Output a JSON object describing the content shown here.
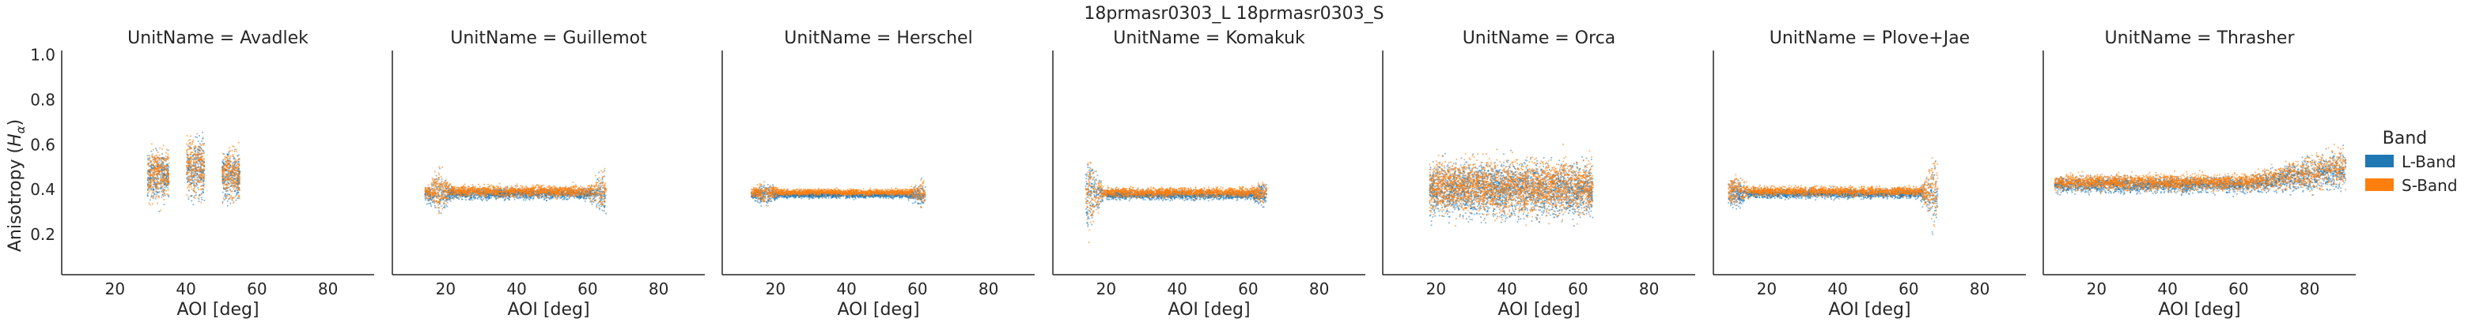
{
  "chart_data": {
    "type": "scatter",
    "title": "18prmasr0303_L 18prmasr0303_S",
    "xlabel": "AOI [deg]",
    "ylabel": "Anisotropy ($H_{\\alpha}$)",
    "ylabel_main": "Anisotropy (",
    "ylabel_math": "H",
    "ylabel_sub": "α",
    "ylabel_close": ")",
    "xlim": [
      5,
      93
    ],
    "ylim": [
      0.02,
      1.02
    ],
    "xticks": [
      "20",
      "40",
      "60",
      "80"
    ],
    "yticks": [
      "0.2",
      "0.4",
      "0.6",
      "0.8",
      "1.0"
    ],
    "legend": {
      "title": "Band",
      "placement": "right",
      "entries": [
        {
          "label": "L-Band",
          "color": "#1f77b4"
        },
        {
          "label": "S-Band",
          "color": "#ff7f0e"
        }
      ]
    },
    "series_colors": {
      "L-Band": "#1f77b4",
      "S-Band": "#ff7f0e"
    },
    "facets": [
      {
        "title": "UnitName = Avadlek",
        "segments": [
          {
            "x0": 29,
            "x1": 35,
            "mean": 0.47,
            "spread": 0.16
          },
          {
            "x0": 40,
            "x1": 45,
            "mean": 0.5,
            "spread": 0.19
          },
          {
            "x0": 50,
            "x1": 55,
            "mean": 0.47,
            "spread": 0.16
          }
        ]
      },
      {
        "title": "UnitName = Guillemot",
        "segments": [
          {
            "x0": 14,
            "x1": 65,
            "mean": 0.39,
            "spread": 0.035
          }
        ],
        "edges": [
          {
            "x": 18,
            "amp": 0.2
          },
          {
            "x": 64,
            "amp": 0.22
          }
        ]
      },
      {
        "title": "UnitName = Herschel",
        "segments": [
          {
            "x0": 13,
            "x1": 62,
            "mean": 0.385,
            "spread": 0.02
          }
        ],
        "edges": [
          {
            "x": 17,
            "amp": 0.12
          },
          {
            "x": 61,
            "amp": 0.12
          }
        ]
      },
      {
        "title": "UnitName = Komakuk",
        "segments": [
          {
            "x0": 14,
            "x1": 65,
            "mean": 0.385,
            "spread": 0.03
          }
        ],
        "edges": [
          {
            "x": 15,
            "amp": 0.45
          },
          {
            "x": 64,
            "amp": 0.1
          }
        ]
      },
      {
        "title": "UnitName = Orca",
        "segments": [
          {
            "x0": 18,
            "x1": 64,
            "mean": 0.41,
            "spread": 0.17
          }
        ]
      },
      {
        "title": "UnitName = Plove+Jae",
        "segments": [
          {
            "x0": 9,
            "x1": 68,
            "mean": 0.39,
            "spread": 0.03
          }
        ],
        "edges": [
          {
            "x": 11,
            "amp": 0.15
          },
          {
            "x": 67,
            "amp": 0.4
          }
        ]
      },
      {
        "title": "UnitName = Thrasher",
        "segments": [
          {
            "x0": 8,
            "x1": 90,
            "mean": 0.43,
            "spread": 0.05,
            "rise_from": 62,
            "rise_to": 0.5
          }
        ]
      }
    ]
  }
}
